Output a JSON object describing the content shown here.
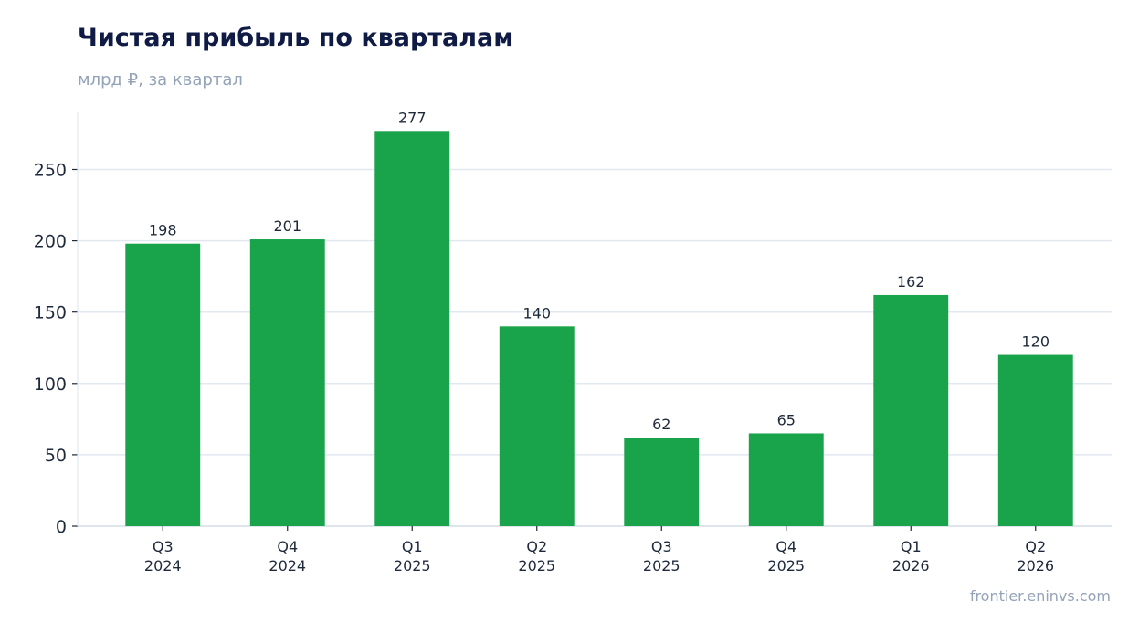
{
  "title": "Чистая прибыль по кварталам",
  "subtitle": "млрд ₽, за квартал",
  "source": "frontier.eninvs.com",
  "colors": {
    "bar": "#19a34a",
    "grid": "#e2e8f0",
    "axis": "#cbd5e1",
    "title": "#0f1b44",
    "muted": "#94a3b8",
    "text": "#1e293b"
  },
  "chart_data": {
    "type": "bar",
    "title": "Чистая прибыль по кварталам",
    "subtitle": "млрд ₽, за квартал",
    "categories": [
      [
        "Q3",
        "2024"
      ],
      [
        "Q4",
        "2024"
      ],
      [
        "Q1",
        "2025"
      ],
      [
        "Q2",
        "2025"
      ],
      [
        "Q3",
        "2025"
      ],
      [
        "Q4",
        "2025"
      ],
      [
        "Q1",
        "2026"
      ],
      [
        "Q2",
        "2026"
      ]
    ],
    "values": [
      198,
      201,
      277,
      140,
      62,
      65,
      162,
      120
    ],
    "data_labels": [
      "198",
      "201",
      "277",
      "140",
      "62",
      "65",
      "162",
      "120"
    ],
    "yticks": [
      0,
      50,
      100,
      150,
      200,
      250
    ],
    "ylim": [
      0,
      290
    ],
    "grid": true,
    "legend": "none"
  }
}
